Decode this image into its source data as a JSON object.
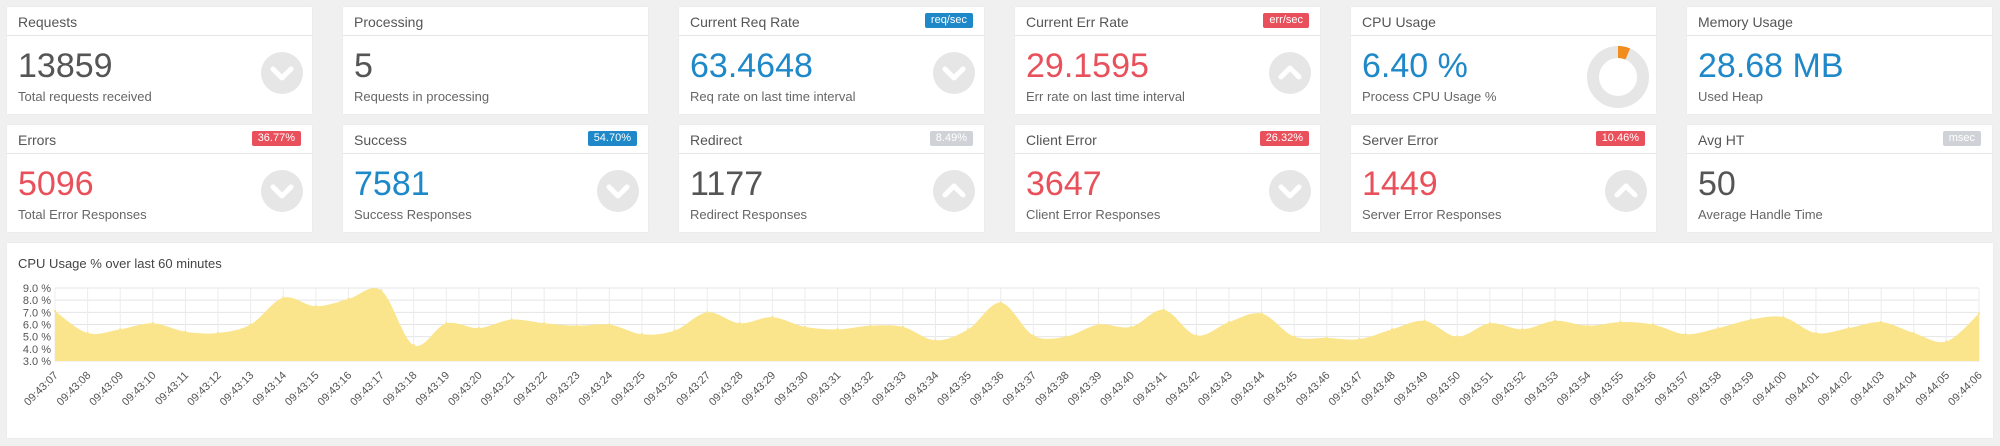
{
  "colors": {
    "blue": "#1e88c8",
    "red": "#e8505b",
    "gray_text": "#555555",
    "badge_blue": "#1e88c8",
    "badge_red": "#e8505b",
    "badge_gray": "#cfd3d7",
    "chart_fill": "#fae58d",
    "donut_ring": "#e6e6e6",
    "donut_arc": "#f28c1c"
  },
  "cards": [
    {
      "title": "Requests",
      "badge": "",
      "value": "13859",
      "sub": "Total requests received",
      "icon": "chevron-down-icon",
      "value_color": "gray"
    },
    {
      "title": "Processing",
      "badge": "",
      "value": "5",
      "sub": "Requests in processing",
      "icon": "",
      "value_color": "gray"
    },
    {
      "title": "Current Req Rate",
      "badge": "req/sec",
      "value": "63.4648",
      "sub": "Req rate on last time interval",
      "icon": "chevron-down-icon",
      "value_color": "blue",
      "badge_color": "blue"
    },
    {
      "title": "Current Err Rate",
      "badge": "err/sec",
      "value": "29.1595",
      "sub": "Err rate on last time interval",
      "icon": "chevron-up-icon",
      "value_color": "red",
      "badge_color": "red"
    },
    {
      "title": "CPU Usage",
      "badge": "",
      "value": "6.40 %",
      "sub": "Process CPU Usage %",
      "icon": "donut-gauge-icon",
      "value_color": "blue",
      "cpu_percent": 6.4
    },
    {
      "title": "Memory Usage",
      "badge": "",
      "value": "28.68 MB",
      "sub": "Used Heap",
      "icon": "",
      "value_color": "blue"
    },
    {
      "title": "Errors",
      "badge": "36.77%",
      "value": "5096",
      "sub": "Total Error Responses",
      "icon": "chevron-down-icon",
      "value_color": "red",
      "badge_color": "red"
    },
    {
      "title": "Success",
      "badge": "54.70%",
      "value": "7581",
      "sub": "Success Responses",
      "icon": "chevron-down-icon",
      "value_color": "blue",
      "badge_color": "blue"
    },
    {
      "title": "Redirect",
      "badge": "8.49%",
      "value": "1177",
      "sub": "Redirect Responses",
      "icon": "chevron-up-icon",
      "value_color": "gray",
      "badge_color": "gray"
    },
    {
      "title": "Client Error",
      "badge": "26.32%",
      "value": "3647",
      "sub": "Client Error Responses",
      "icon": "chevron-down-icon",
      "value_color": "red",
      "badge_color": "red"
    },
    {
      "title": "Server Error",
      "badge": "10.46%",
      "value": "1449",
      "sub": "Server Error Responses",
      "icon": "chevron-up-icon",
      "value_color": "red",
      "badge_color": "red"
    },
    {
      "title": "Avg HT",
      "badge": "msec",
      "value": "50",
      "sub": "Average Handle Time",
      "icon": "",
      "value_color": "gray",
      "badge_color": "gray"
    }
  ],
  "chart_title": "CPU Usage % over last 60 minutes",
  "chart_data": {
    "type": "area",
    "title": "CPU Usage % over last 60 minutes",
    "ylim": [
      3.0,
      9.0
    ],
    "y_ticks": [
      "3.0 %",
      "4.0 %",
      "5.0 %",
      "6.0 %",
      "7.0 %",
      "8.0 %",
      "9.0 %"
    ],
    "grid": true,
    "x": [
      "09:43:07",
      "09:43:08",
      "09:43:09",
      "09:43:10",
      "09:43:11",
      "09:43:12",
      "09:43:13",
      "09:43:14",
      "09:43:15",
      "09:43:16",
      "09:43:17",
      "09:43:18",
      "09:43:19",
      "09:43:20",
      "09:43:21",
      "09:43:22",
      "09:43:23",
      "09:43:24",
      "09:43:25",
      "09:43:26",
      "09:43:27",
      "09:43:28",
      "09:43:29",
      "09:43:30",
      "09:43:31",
      "09:43:32",
      "09:43:33",
      "09:43:34",
      "09:43:35",
      "09:43:36",
      "09:43:37",
      "09:43:38",
      "09:43:39",
      "09:43:40",
      "09:43:41",
      "09:43:42",
      "09:43:43",
      "09:43:44",
      "09:43:45",
      "09:43:46",
      "09:43:47",
      "09:43:48",
      "09:43:49",
      "09:43:50",
      "09:43:51",
      "09:43:52",
      "09:43:53",
      "09:43:54",
      "09:43:55",
      "09:43:56",
      "09:43:57",
      "09:43:58",
      "09:43:59",
      "09:44:00",
      "09:44:01",
      "09:44:02",
      "09:44:03",
      "09:44:04",
      "09:44:05",
      "09:44:06"
    ],
    "values": [
      7.1,
      5.3,
      5.6,
      6.1,
      5.4,
      5.3,
      6.0,
      8.2,
      7.5,
      8.1,
      8.8,
      4.3,
      6.1,
      5.7,
      6.4,
      6.1,
      5.9,
      6.0,
      5.2,
      5.5,
      7.0,
      6.1,
      6.6,
      5.8,
      5.6,
      5.9,
      5.8,
      4.7,
      5.6,
      7.8,
      5.1,
      5.0,
      6.0,
      5.8,
      7.2,
      5.1,
      6.2,
      6.9,
      5.0,
      4.9,
      4.8,
      5.6,
      6.3,
      5.0,
      6.1,
      5.6,
      6.3,
      5.9,
      6.2,
      6.0,
      5.2,
      5.7,
      6.4,
      6.6,
      5.3,
      5.7,
      6.2,
      5.3,
      4.6,
      6.9
    ]
  }
}
